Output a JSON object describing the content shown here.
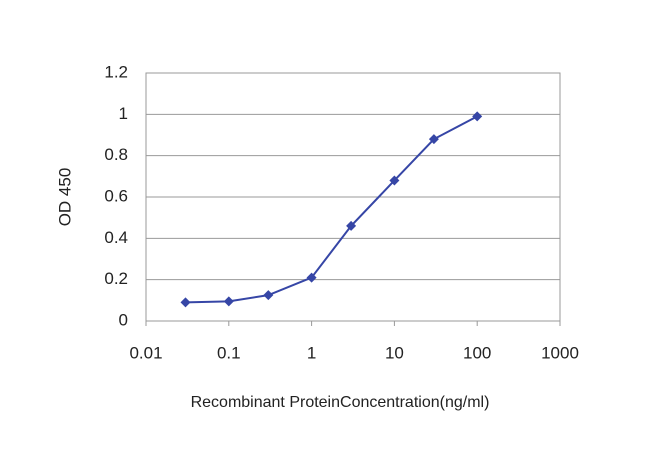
{
  "chart_data": {
    "type": "line",
    "x_label": "Recombinant ProteinConcentration(ng/ml)",
    "y_label": "OD 450",
    "x": [
      0.03,
      0.1,
      0.3,
      1,
      3,
      10,
      30,
      100
    ],
    "series": [
      {
        "color": "#3646a6",
        "values": [
          0.09,
          0.095,
          0.125,
          0.21,
          0.46,
          0.68,
          0.88,
          0.99
        ]
      }
    ],
    "xscale": "log",
    "xlim": [
      0.01,
      1000
    ],
    "xticks": [
      0.01,
      0.1,
      1,
      10,
      100,
      1000
    ],
    "ylim": [
      0,
      1.2
    ],
    "yticks": [
      0,
      0.2,
      0.4,
      0.6,
      0.8,
      1,
      1.2
    ],
    "grid": true
  }
}
